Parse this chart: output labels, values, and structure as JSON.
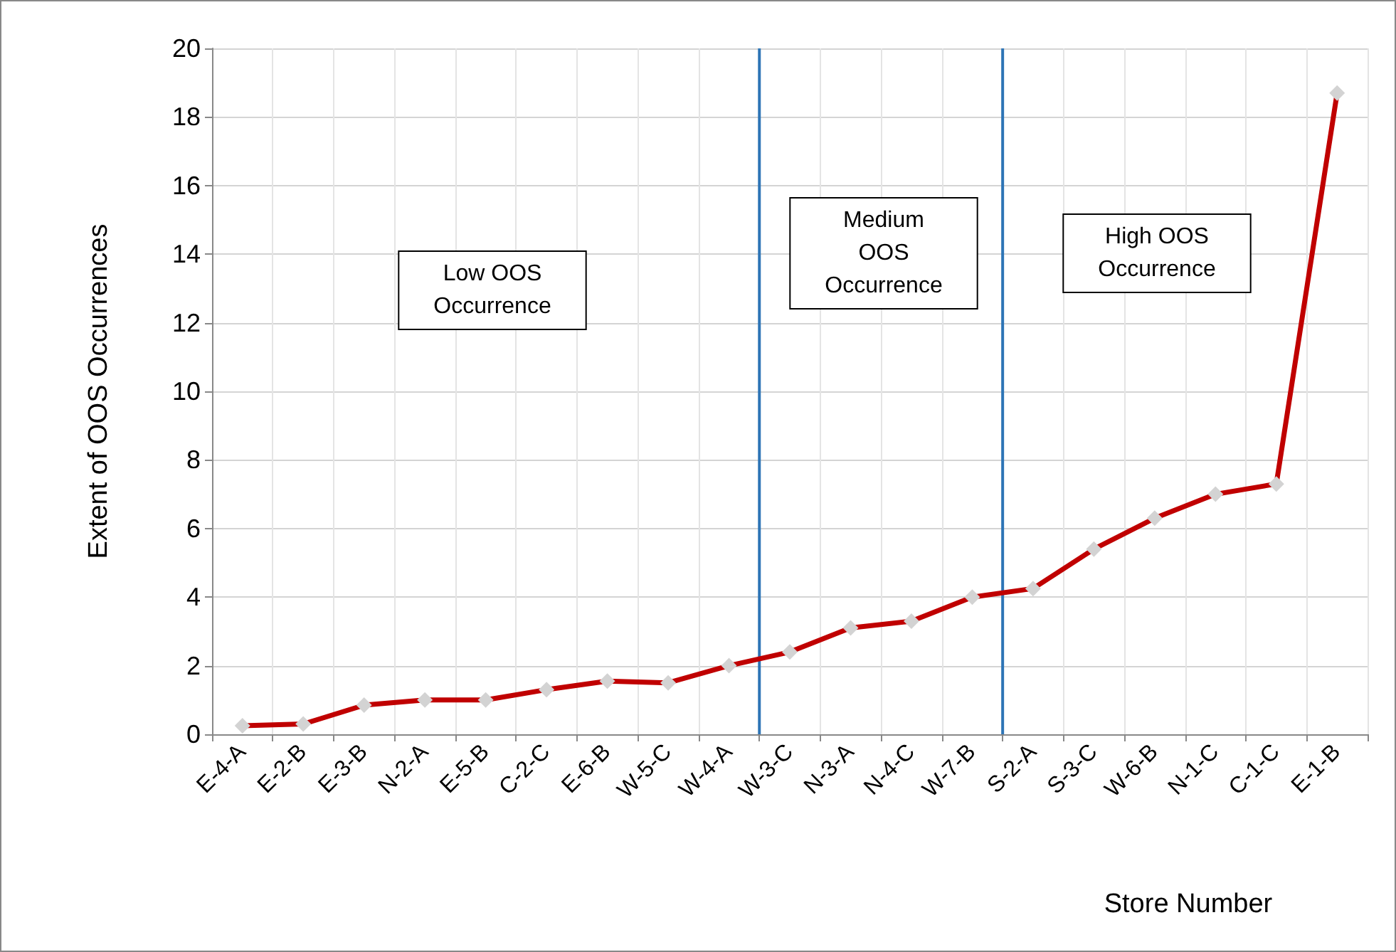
{
  "chart_data": {
    "type": "line",
    "xlabel": "Store Number",
    "ylabel": "Extent of OOS Occurrences",
    "categories": [
      "E-4-A",
      "E-2-B",
      "E-3-B",
      "N-2-A",
      "E-5-B",
      "C-2-C",
      "E-6-B",
      "W-5-C",
      "W-4-A",
      "W-3-C",
      "N-3-A",
      "N-4-C",
      "W-7-B",
      "S-2-A",
      "S-3-C",
      "W-6-B",
      "N-1-C",
      "C-1-C",
      "E-1-B"
    ],
    "series": [
      {
        "color": "#c00000",
        "values": [
          0.25,
          0.3,
          0.85,
          1.0,
          1.0,
          1.3,
          1.55,
          1.5,
          2.0,
          2.4,
          3.1,
          3.3,
          4.0,
          4.25,
          5.4,
          6.3,
          7.0,
          7.3,
          18.7
        ]
      }
    ],
    "ylim": [
      0,
      20
    ],
    "yticks": [
      0,
      2,
      4,
      6,
      8,
      10,
      12,
      14,
      16,
      18,
      20
    ],
    "annotations": [
      "Low OOS\nOccurrence",
      "Medium\nOOS\nOccurrence",
      "High OOS\nOccurrence"
    ],
    "grid": true,
    "marker": "diamond",
    "line_style": "solid"
  }
}
